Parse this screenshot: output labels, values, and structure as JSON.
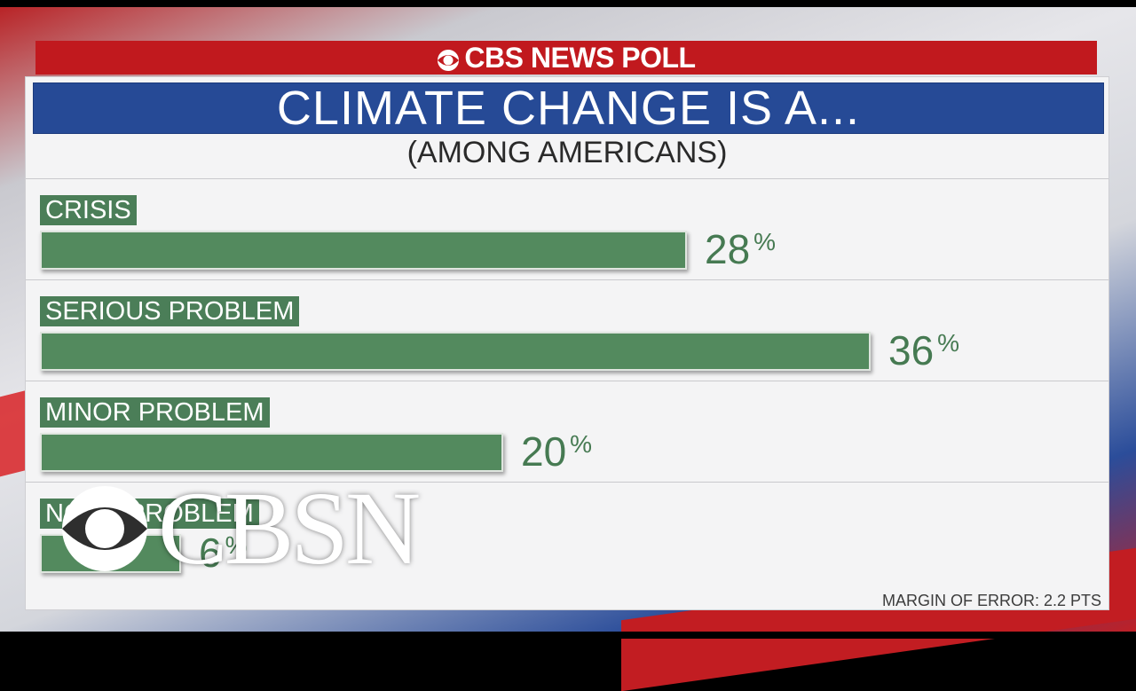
{
  "header": {
    "poll_label": "CBS NEWS POLL"
  },
  "chart": {
    "title": "CLIMATE CHANGE IS A...",
    "subtitle": "(AMONG AMERICANS)",
    "footnote": "MARGIN OF ERROR: 2.2 PTS"
  },
  "chart_data": {
    "type": "bar",
    "orientation": "horizontal",
    "title": "CLIMATE CHANGE IS A...",
    "subtitle": "(AMONG AMERICANS)",
    "categories": [
      "CRISIS",
      "SERIOUS PROBLEM",
      "MINOR PROBLEM",
      "NOT A PROBLEM"
    ],
    "values": [
      28,
      36,
      20,
      6
    ],
    "value_labels": [
      "28",
      "36",
      "20",
      "6"
    ],
    "unit": "%",
    "xlim": [
      0,
      36
    ],
    "grid": false,
    "legend": "none",
    "bar_color": "#538a5e",
    "label_color": "#4b7e58"
  },
  "overlay": {
    "network_logo": "CBSN",
    "logo_icon": "cbs-eye-icon"
  },
  "colors": {
    "header_red": "#c1191e",
    "title_blue": "#264a96",
    "bar_green": "#538a5e",
    "value_green": "#467a52"
  }
}
